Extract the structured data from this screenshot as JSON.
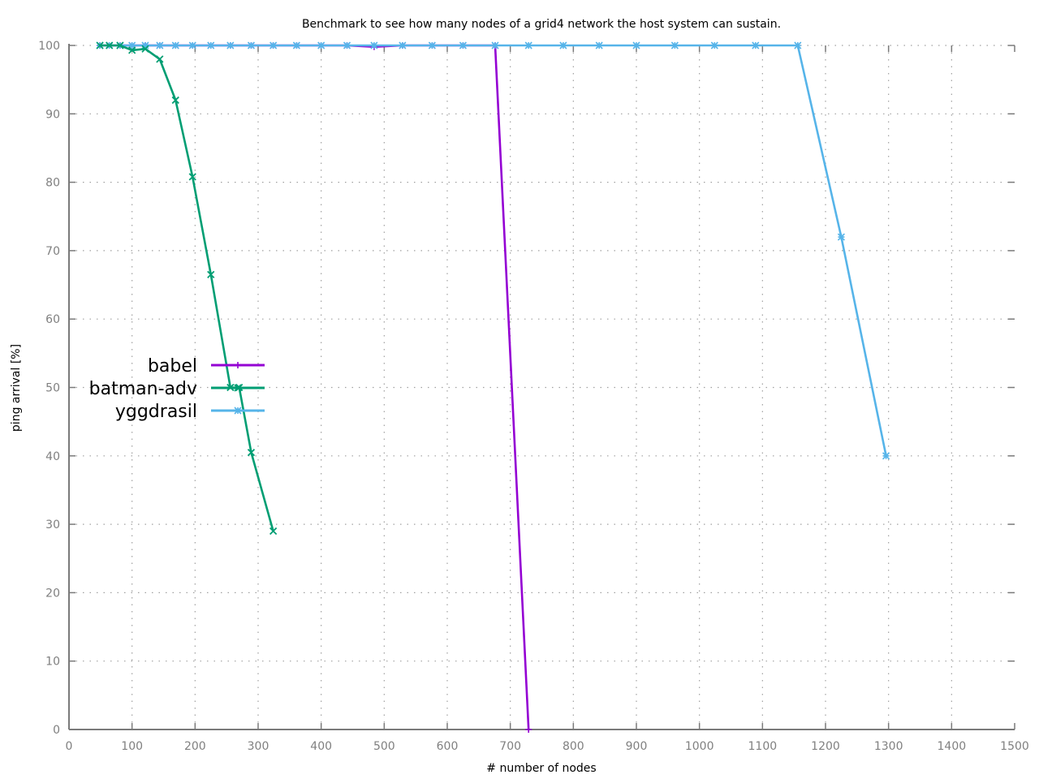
{
  "chart_data": {
    "type": "line",
    "title": "Benchmark to see how many nodes of a grid4 network the host system can sustain.",
    "xlabel": "# number of nodes",
    "ylabel": "ping arrival [%]",
    "xlim": [
      0,
      1500
    ],
    "ylim": [
      0,
      100
    ],
    "xticks": [
      0,
      100,
      200,
      300,
      400,
      500,
      600,
      700,
      800,
      900,
      1000,
      1100,
      1200,
      1300,
      1400,
      1500
    ],
    "yticks": [
      0,
      10,
      20,
      30,
      40,
      50,
      60,
      70,
      80,
      90,
      100
    ],
    "grid": true,
    "legend_position": "left-middle",
    "series": [
      {
        "name": "babel",
        "color": "#9400d3",
        "marker": "plus",
        "x": [
          49,
          64,
          81,
          100,
          121,
          144,
          169,
          196,
          225,
          256,
          289,
          324,
          361,
          400,
          441,
          484,
          529,
          576,
          625,
          676,
          729
        ],
        "y": [
          100,
          100,
          100,
          100,
          100,
          100,
          100,
          100,
          100,
          100,
          100,
          100,
          100,
          100,
          100,
          99.8,
          100,
          100,
          100,
          100,
          0
        ]
      },
      {
        "name": "batman-adv",
        "color": "#009e73",
        "marker": "x",
        "x": [
          49,
          64,
          81,
          100,
          121,
          144,
          169,
          196,
          225,
          256,
          270,
          289,
          324
        ],
        "y": [
          100,
          100,
          100,
          99.3,
          99.5,
          98,
          92,
          80.8,
          66.5,
          50,
          50,
          40.5,
          29
        ]
      },
      {
        "name": "yggdrasil",
        "color": "#56b4e9",
        "marker": "star",
        "x": [
          49,
          64,
          81,
          100,
          121,
          144,
          169,
          196,
          225,
          256,
          289,
          324,
          361,
          400,
          441,
          484,
          529,
          576,
          625,
          676,
          729,
          784,
          841,
          900,
          961,
          1024,
          1089,
          1156,
          1225,
          1296
        ],
        "y": [
          100,
          100,
          100,
          100,
          100,
          100,
          100,
          100,
          100,
          100,
          100,
          100,
          100,
          100,
          100,
          100,
          100,
          100,
          100,
          100,
          100,
          100,
          100,
          100,
          100,
          100,
          100,
          100,
          72,
          40
        ]
      }
    ]
  }
}
